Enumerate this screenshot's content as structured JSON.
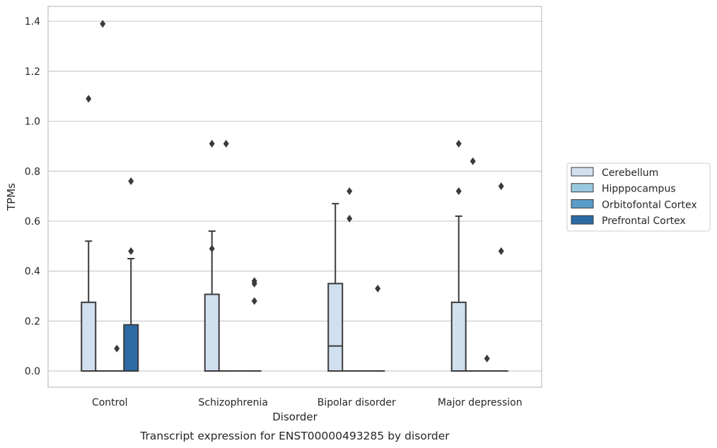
{
  "chart_data": {
    "type": "box",
    "title": "Transcript expression for ENST00000493285 by disorder",
    "xlabel": "Disorder",
    "ylabel": "TPMs",
    "ylim": [
      -0.065,
      1.46
    ],
    "yticks": [
      0.0,
      0.2,
      0.4,
      0.6,
      0.8,
      1.0,
      1.2,
      1.4
    ],
    "ytick_labels": [
      "0.0",
      "0.2",
      "0.4",
      "0.6",
      "0.8",
      "1.0",
      "1.2",
      "1.4"
    ],
    "grid": "horizontal",
    "legend_placement": "right",
    "categories": [
      "Control",
      "Schizophrenia",
      "Bipolar disorder",
      "Major depression"
    ],
    "series": [
      {
        "name": "Cerebellum",
        "color": "#d1e0ee",
        "boxes": [
          {
            "q1": 0.0,
            "median": 0.0,
            "q3": 0.275,
            "whisker_low": 0.0,
            "whisker_high": 0.52,
            "outliers": [
              1.09
            ]
          },
          {
            "q1": 0.0,
            "median": 0.0,
            "q3": 0.307,
            "whisker_low": 0.0,
            "whisker_high": 0.56,
            "outliers": [
              0.91,
              0.49
            ]
          },
          {
            "q1": 0.0,
            "median": 0.1,
            "q3": 0.35,
            "whisker_low": 0.0,
            "whisker_high": 0.67,
            "outliers": []
          },
          {
            "q1": 0.0,
            "median": 0.0,
            "q3": 0.275,
            "whisker_low": 0.0,
            "whisker_high": 0.62,
            "outliers": [
              0.91,
              0.72
            ]
          }
        ]
      },
      {
        "name": "Hipppocampus",
        "color": "#9ac8e0",
        "boxes": [
          {
            "q1": 0.0,
            "median": 0.0,
            "q3": 0.0,
            "whisker_low": 0.0,
            "whisker_high": 0.0,
            "outliers": [
              1.39
            ]
          },
          {
            "q1": 0.0,
            "median": 0.0,
            "q3": 0.0,
            "whisker_low": 0.0,
            "whisker_high": 0.0,
            "outliers": [
              0.91
            ]
          },
          {
            "q1": 0.0,
            "median": 0.0,
            "q3": 0.0,
            "whisker_low": 0.0,
            "whisker_high": 0.0,
            "outliers": [
              0.72,
              0.61
            ]
          },
          {
            "q1": 0.0,
            "median": 0.0,
            "q3": 0.0,
            "whisker_low": 0.0,
            "whisker_high": 0.0,
            "outliers": [
              0.84
            ]
          }
        ]
      },
      {
        "name": "Orbitofontal Cortex",
        "color": "#5a9cc8",
        "boxes": [
          {
            "q1": 0.0,
            "median": 0.0,
            "q3": 0.0,
            "whisker_low": 0.0,
            "whisker_high": 0.0,
            "outliers": [
              0.09
            ]
          },
          {
            "q1": 0.0,
            "median": 0.0,
            "q3": 0.0,
            "whisker_low": 0.0,
            "whisker_high": 0.0,
            "outliers": []
          },
          {
            "q1": 0.0,
            "median": 0.0,
            "q3": 0.0,
            "whisker_low": 0.0,
            "whisker_high": 0.0,
            "outliers": []
          },
          {
            "q1": 0.0,
            "median": 0.0,
            "q3": 0.0,
            "whisker_low": 0.0,
            "whisker_high": 0.0,
            "outliers": [
              0.05
            ]
          }
        ]
      },
      {
        "name": "Prefrontal Cortex",
        "color": "#2c6aa6",
        "boxes": [
          {
            "q1": 0.0,
            "median": 0.0,
            "q3": 0.185,
            "whisker_low": 0.0,
            "whisker_high": 0.45,
            "outliers": [
              0.76,
              0.48
            ]
          },
          {
            "q1": 0.0,
            "median": 0.0,
            "q3": 0.0,
            "whisker_low": 0.0,
            "whisker_high": 0.0,
            "outliers": [
              0.36,
              0.35,
              0.28
            ]
          },
          {
            "q1": 0.0,
            "median": 0.0,
            "q3": 0.0,
            "whisker_low": 0.0,
            "whisker_high": 0.0,
            "outliers": [
              0.33
            ]
          },
          {
            "q1": 0.0,
            "median": 0.0,
            "q3": 0.0,
            "whisker_low": 0.0,
            "whisker_high": 0.0,
            "outliers": [
              0.74,
              0.48
            ]
          }
        ]
      }
    ]
  }
}
